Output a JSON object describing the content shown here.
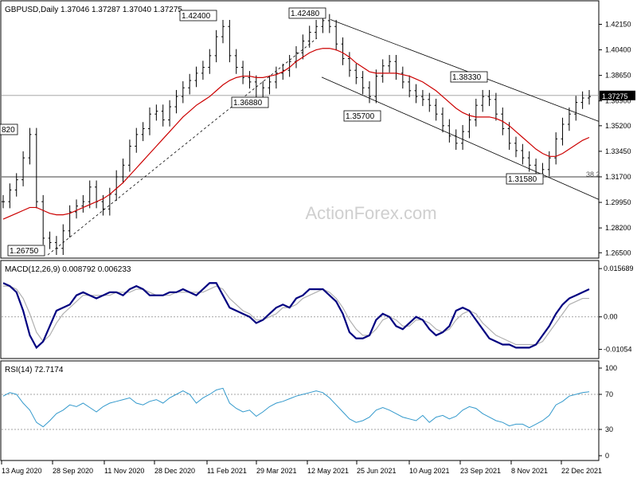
{
  "chart_data": [
    {
      "type": "line",
      "panel": "price",
      "title": "GBPUSD,Daily  1.37046 1.37287 1.37040 1.37275",
      "symbol": "GBPUSD,Daily",
      "ohlc": [
        "1.37046",
        "1.37287",
        "1.37040",
        "1.37275"
      ],
      "watermark": "ActionForex.com",
      "ylim": [
        1.26,
        1.43
      ],
      "yticks": [
        "1.42150",
        "1.40400",
        "1.38650",
        "1.36900",
        "1.35200",
        "1.33450",
        "1.31700",
        "1.29950",
        "1.28200",
        "1.26500"
      ],
      "current_price": "1.37275",
      "price_annotations": [
        {
          "label": "1.42400",
          "value": 1.424
        },
        {
          "label": "1.42480",
          "value": 1.4248
        },
        {
          "label": "1.36880",
          "value": 1.3688
        },
        {
          "label": "1.38330",
          "value": 1.3833
        },
        {
          "label": "1.35700",
          "value": 1.357
        },
        {
          "label": "1.31580",
          "value": 1.3158
        },
        {
          "label": "1.26750",
          "value": 1.2675
        },
        {
          "label": "820",
          "value": 1.352
        }
      ],
      "fib_label": "38.2",
      "horizontal_level": 1.317,
      "series": [
        {
          "name": "",
          "values": [
            1.3,
            1.308,
            1.315,
            1.33,
            1.346,
            1.3,
            1.275,
            1.272,
            1.268,
            1.28,
            1.293,
            1.297,
            1.3,
            1.31,
            1.3,
            1.295,
            1.305,
            1.317,
            1.325,
            1.338,
            1.346,
            1.35,
            1.36,
            1.362,
            1.356,
            1.365,
            1.372,
            1.378,
            1.383,
            1.388,
            1.392,
            1.4,
            1.413,
            1.42,
            1.4,
            1.392,
            1.385,
            1.382,
            1.37,
            1.378,
            1.382,
            1.388,
            1.39,
            1.396,
            1.402,
            1.41,
            1.416,
            1.42,
            1.424,
            1.42,
            1.408,
            1.398,
            1.39,
            1.385,
            1.378,
            1.372,
            1.386,
            1.393,
            1.396,
            1.388,
            1.382,
            1.376,
            1.372,
            1.37,
            1.366,
            1.36,
            1.352,
            1.345,
            1.34,
            1.348,
            1.356,
            1.366,
            1.372,
            1.37,
            1.36,
            1.35,
            1.34,
            1.335,
            1.33,
            1.325,
            1.318,
            1.322,
            1.33,
            1.343,
            1.353,
            1.36,
            1.368,
            1.371,
            1.372
          ]
        },
        {
          "name": "",
          "values": [
            1.288,
            1.29,
            1.292,
            1.294,
            1.296,
            1.296,
            1.294,
            1.292,
            1.291,
            1.291,
            1.292,
            1.294,
            1.296,
            1.298,
            1.3,
            1.302,
            1.305,
            1.309,
            1.313,
            1.318,
            1.323,
            1.328,
            1.333,
            1.338,
            1.343,
            1.348,
            1.353,
            1.358,
            1.362,
            1.366,
            1.369,
            1.372,
            1.376,
            1.38,
            1.383,
            1.385,
            1.386,
            1.386,
            1.385,
            1.385,
            1.386,
            1.387,
            1.389,
            1.392,
            1.396,
            1.399,
            1.402,
            1.404,
            1.405,
            1.405,
            1.404,
            1.402,
            1.399,
            1.395,
            1.392,
            1.389,
            1.388,
            1.388,
            1.388,
            1.388,
            1.387,
            1.386,
            1.384,
            1.382,
            1.379,
            1.376,
            1.372,
            1.368,
            1.364,
            1.361,
            1.359,
            1.358,
            1.358,
            1.358,
            1.357,
            1.355,
            1.352,
            1.348,
            1.344,
            1.34,
            1.336,
            1.333,
            1.331,
            1.331,
            1.333,
            1.336,
            1.339,
            1.342,
            1.344
          ]
        }
      ]
    },
    {
      "type": "line",
      "panel": "macd",
      "title": "MACD(12,26,9) 0.008792 0.006233",
      "ylim": [
        -0.0125,
        0.0165
      ],
      "yticks": [
        "0.015689",
        "0.00",
        "-0.01054"
      ],
      "series": [
        {
          "name": "",
          "values": [
            0.011,
            0.01,
            0.008,
            0.002,
            -0.006,
            -0.01,
            -0.008,
            -0.003,
            0.002,
            0.003,
            0.004,
            0.007,
            0.008,
            0.007,
            0.006,
            0.007,
            0.008,
            0.008,
            0.007,
            0.009,
            0.01,
            0.009,
            0.007,
            0.007,
            0.007,
            0.008,
            0.008,
            0.009,
            0.008,
            0.007,
            0.009,
            0.011,
            0.011,
            0.007,
            0.003,
            0.002,
            0.001,
            0.0,
            -0.002,
            -0.001,
            0.001,
            0.003,
            0.004,
            0.003,
            0.006,
            0.007,
            0.009,
            0.009,
            0.009,
            0.007,
            0.005,
            0.001,
            -0.005,
            -0.007,
            -0.007,
            -0.006,
            -0.001,
            0.001,
            0.0,
            -0.003,
            -0.004,
            -0.002,
            0.0,
            -0.001,
            -0.004,
            -0.006,
            -0.005,
            -0.003,
            0.002,
            0.003,
            0.002,
            -0.001,
            -0.004,
            -0.007,
            -0.008,
            -0.009,
            -0.009,
            -0.01,
            -0.01,
            -0.01,
            -0.009,
            -0.006,
            -0.003,
            0.001,
            0.004,
            0.006,
            0.007,
            0.008,
            0.009
          ]
        },
        {
          "name": "",
          "values": [
            0.01,
            0.01,
            0.009,
            0.006,
            0.001,
            -0.005,
            -0.008,
            -0.006,
            -0.002,
            0.001,
            0.003,
            0.005,
            0.007,
            0.007,
            0.007,
            0.007,
            0.007,
            0.008,
            0.008,
            0.008,
            0.009,
            0.009,
            0.008,
            0.007,
            0.007,
            0.007,
            0.008,
            0.008,
            0.008,
            0.008,
            0.008,
            0.009,
            0.01,
            0.009,
            0.006,
            0.004,
            0.002,
            0.001,
            -0.001,
            -0.001,
            0.0,
            0.001,
            0.003,
            0.003,
            0.004,
            0.006,
            0.007,
            0.008,
            0.009,
            0.008,
            0.006,
            0.003,
            -0.001,
            -0.004,
            -0.006,
            -0.006,
            -0.004,
            -0.001,
            0.0,
            -0.001,
            -0.003,
            -0.003,
            -0.001,
            -0.001,
            -0.002,
            -0.004,
            -0.005,
            -0.004,
            -0.001,
            0.001,
            0.002,
            0.001,
            -0.002,
            -0.004,
            -0.006,
            -0.007,
            -0.008,
            -0.009,
            -0.009,
            -0.009,
            -0.009,
            -0.008,
            -0.005,
            -0.002,
            0.001,
            0.004,
            0.005,
            0.006,
            0.006
          ]
        }
      ]
    },
    {
      "type": "line",
      "panel": "rsi",
      "title": "RSI(14) 72.7174",
      "ylim": [
        0,
        100
      ],
      "yticks": [
        "100",
        "70",
        "30",
        "0"
      ],
      "series": [
        {
          "name": "",
          "values": [
            68,
            72,
            70,
            60,
            52,
            38,
            33,
            40,
            48,
            52,
            58,
            56,
            60,
            55,
            50,
            56,
            60,
            62,
            64,
            66,
            60,
            58,
            62,
            64,
            60,
            66,
            70,
            74,
            70,
            60,
            66,
            70,
            75,
            77,
            60,
            54,
            50,
            52,
            45,
            50,
            56,
            60,
            62,
            65,
            68,
            70,
            72,
            74,
            72,
            66,
            58,
            50,
            42,
            38,
            40,
            44,
            52,
            55,
            52,
            48,
            44,
            42,
            40,
            46,
            38,
            44,
            46,
            42,
            45,
            52,
            56,
            54,
            48,
            44,
            40,
            38,
            34,
            36,
            36,
            32,
            36,
            40,
            46,
            58,
            62,
            68,
            70,
            72,
            73
          ]
        }
      ]
    }
  ],
  "x_axis": {
    "ticks": [
      "13 Aug 2020",
      "28 Sep 2020",
      "11 Nov 2020",
      "28 Dec 2020",
      "11 Feb 2021",
      "29 Mar 2021",
      "12 May 2021",
      "25 Jun 2021",
      "10 Aug 2021",
      "23 Sep 2021",
      "8 Nov 2021",
      "22 Dec 2021"
    ]
  },
  "colors": {
    "background": "#ffffff",
    "price_line": "#000000",
    "moving_average": "#cc0000",
    "macd_line": "#000080",
    "macd_signal": "#b0b0b0",
    "rsi_line": "#3399cc",
    "trendline": "#000000",
    "grid": "#c8c8c8",
    "watermark": "#cfcfcf"
  }
}
